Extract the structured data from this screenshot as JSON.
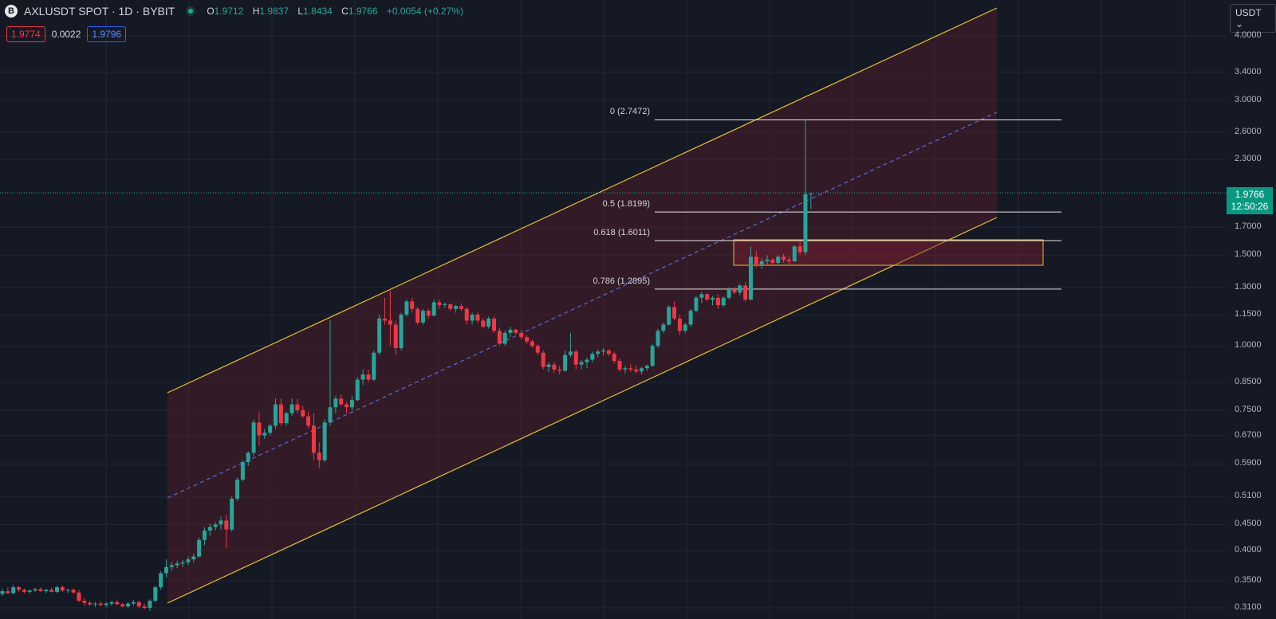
{
  "header": {
    "symbol": "AXLUSDT SPOT · 1D · BYBIT",
    "open_label": "O",
    "open": "1.9712",
    "high_label": "H",
    "high": "1.9837",
    "low_label": "L",
    "low": "1.8434",
    "close_label": "C",
    "close": "1.9766",
    "change": "+0.0054 (+0.27%)"
  },
  "quote": {
    "bid": "1.9774",
    "spread": "0.0022",
    "ask": "1.9796"
  },
  "currency": "USDT",
  "icons": {
    "symbol": "bybit-logo-icon",
    "status": "market-open-status-icon",
    "dropdown": "chevron-down-icon"
  },
  "price_axis": [
    "4.0000",
    "3.4000",
    "3.0000",
    "2.6000",
    "2.3000",
    "1.7000",
    "1.5000",
    "1.3000",
    "1.1500",
    "1.0000",
    "0.8500",
    "0.7500",
    "0.6700",
    "0.5900",
    "0.5100",
    "0.4500",
    "0.4000",
    "0.3500",
    "0.3100"
  ],
  "last_price": {
    "price": "1.9766",
    "countdown": "12:50:26"
  },
  "fib_levels": [
    {
      "label": "0 (2.7472)",
      "price": 2.7472
    },
    {
      "label": "0.5 (1.8199)",
      "price": 1.8199
    },
    {
      "label": "0.618 (1.6011)",
      "price": 1.6011
    },
    {
      "label": "0.786 (1.2895)",
      "price": 1.2895
    }
  ],
  "colors": {
    "background": "#151924",
    "up": "#26a69a",
    "down": "#f23645",
    "channel": "#e6c229",
    "median": "#5b6bd6",
    "channel_fill": "#5b1f2c"
  },
  "chart_data": {
    "type": "candlestick",
    "symbol": "AXLUSDT",
    "interval": "1D",
    "y_scale": "log",
    "ylim": [
      0.3,
      4.3
    ],
    "candles": [
      [
        0.33,
        0.338,
        0.327,
        0.334
      ],
      [
        0.334,
        0.34,
        0.33,
        0.331
      ],
      [
        0.331,
        0.344,
        0.329,
        0.34
      ],
      [
        0.34,
        0.342,
        0.332,
        0.336
      ],
      [
        0.336,
        0.338,
        0.331,
        0.333
      ],
      [
        0.333,
        0.336,
        0.33,
        0.335
      ],
      [
        0.335,
        0.339,
        0.333,
        0.337
      ],
      [
        0.337,
        0.34,
        0.333,
        0.334
      ],
      [
        0.334,
        0.337,
        0.331,
        0.336
      ],
      [
        0.336,
        0.339,
        0.332,
        0.333
      ],
      [
        0.333,
        0.342,
        0.331,
        0.34
      ],
      [
        0.34,
        0.343,
        0.333,
        0.335
      ],
      [
        0.335,
        0.338,
        0.331,
        0.336
      ],
      [
        0.336,
        0.338,
        0.33,
        0.332
      ],
      [
        0.332,
        0.336,
        0.318,
        0.32
      ],
      [
        0.32,
        0.324,
        0.313,
        0.317
      ],
      [
        0.317,
        0.32,
        0.312,
        0.315
      ],
      [
        0.315,
        0.318,
        0.311,
        0.316
      ],
      [
        0.316,
        0.319,
        0.312,
        0.314
      ],
      [
        0.314,
        0.318,
        0.311,
        0.316
      ],
      [
        0.316,
        0.32,
        0.313,
        0.318
      ],
      [
        0.318,
        0.322,
        0.314,
        0.315
      ],
      [
        0.315,
        0.317,
        0.311,
        0.312
      ],
      [
        0.312,
        0.318,
        0.31,
        0.316
      ],
      [
        0.316,
        0.321,
        0.313,
        0.318
      ],
      [
        0.318,
        0.32,
        0.31,
        0.312
      ],
      [
        0.312,
        0.316,
        0.308,
        0.31
      ],
      [
        0.31,
        0.322,
        0.306,
        0.32
      ],
      [
        0.32,
        0.342,
        0.318,
        0.34
      ],
      [
        0.34,
        0.365,
        0.336,
        0.362
      ],
      [
        0.362,
        0.385,
        0.355,
        0.372
      ],
      [
        0.372,
        0.38,
        0.366,
        0.375
      ],
      [
        0.375,
        0.383,
        0.37,
        0.378
      ],
      [
        0.378,
        0.384,
        0.372,
        0.38
      ],
      [
        0.38,
        0.39,
        0.375,
        0.385
      ],
      [
        0.385,
        0.395,
        0.38,
        0.39
      ],
      [
        0.39,
        0.425,
        0.388,
        0.42
      ],
      [
        0.42,
        0.445,
        0.41,
        0.438
      ],
      [
        0.438,
        0.452,
        0.428,
        0.445
      ],
      [
        0.445,
        0.455,
        0.438,
        0.45
      ],
      [
        0.45,
        0.466,
        0.44,
        0.458
      ],
      [
        0.458,
        0.47,
        0.405,
        0.44
      ],
      [
        0.44,
        0.51,
        0.436,
        0.505
      ],
      [
        0.505,
        0.555,
        0.5,
        0.55
      ],
      [
        0.55,
        0.6,
        0.545,
        0.595
      ],
      [
        0.595,
        0.625,
        0.585,
        0.62
      ],
      [
        0.62,
        0.72,
        0.612,
        0.71
      ],
      [
        0.71,
        0.745,
        0.64,
        0.67
      ],
      [
        0.67,
        0.69,
        0.66,
        0.678
      ],
      [
        0.678,
        0.705,
        0.67,
        0.7
      ],
      [
        0.7,
        0.79,
        0.69,
        0.77
      ],
      [
        0.77,
        0.79,
        0.7,
        0.708
      ],
      [
        0.708,
        0.745,
        0.7,
        0.74
      ],
      [
        0.74,
        0.79,
        0.732,
        0.77
      ],
      [
        0.77,
        0.788,
        0.74,
        0.75
      ],
      [
        0.75,
        0.765,
        0.725,
        0.73
      ],
      [
        0.73,
        0.745,
        0.69,
        0.7
      ],
      [
        0.7,
        0.74,
        0.6,
        0.62
      ],
      [
        0.62,
        0.65,
        0.58,
        0.6
      ],
      [
        0.6,
        0.72,
        0.595,
        0.71
      ],
      [
        0.71,
        1.12,
        0.7,
        0.76
      ],
      [
        0.76,
        0.8,
        0.74,
        0.79
      ],
      [
        0.79,
        0.805,
        0.765,
        0.77
      ],
      [
        0.77,
        0.78,
        0.74,
        0.76
      ],
      [
        0.76,
        0.8,
        0.75,
        0.785
      ],
      [
        0.785,
        0.87,
        0.78,
        0.86
      ],
      [
        0.86,
        0.9,
        0.84,
        0.88
      ],
      [
        0.88,
        0.9,
        0.85,
        0.86
      ],
      [
        0.86,
        0.98,
        0.855,
        0.97
      ],
      [
        0.97,
        1.15,
        0.96,
        1.13
      ],
      [
        1.13,
        1.24,
        1.1,
        1.12
      ],
      [
        1.12,
        1.28,
        1.0,
        1.1
      ],
      [
        1.1,
        1.12,
        0.96,
        0.99
      ],
      [
        0.99,
        1.16,
        0.98,
        1.15
      ],
      [
        1.15,
        1.23,
        1.14,
        1.22
      ],
      [
        1.22,
        1.24,
        1.16,
        1.18
      ],
      [
        1.18,
        1.19,
        1.1,
        1.11
      ],
      [
        1.11,
        1.18,
        1.1,
        1.17
      ],
      [
        1.17,
        1.18,
        1.13,
        1.145
      ],
      [
        1.145,
        1.23,
        1.14,
        1.215
      ],
      [
        1.215,
        1.23,
        1.18,
        1.2
      ],
      [
        1.2,
        1.215,
        1.185,
        1.205
      ],
      [
        1.205,
        1.21,
        1.17,
        1.18
      ],
      [
        1.18,
        1.2,
        1.16,
        1.195
      ],
      [
        1.195,
        1.21,
        1.17,
        1.18
      ],
      [
        1.18,
        1.19,
        1.1,
        1.12
      ],
      [
        1.12,
        1.16,
        1.1,
        1.15
      ],
      [
        1.15,
        1.16,
        1.11,
        1.12
      ],
      [
        1.12,
        1.135,
        1.08,
        1.09
      ],
      [
        1.09,
        1.14,
        1.08,
        1.13
      ],
      [
        1.13,
        1.14,
        1.06,
        1.07
      ],
      [
        1.07,
        1.085,
        1.0,
        1.01
      ],
      [
        1.01,
        1.07,
        1.0,
        1.06
      ],
      [
        1.06,
        1.09,
        1.04,
        1.075
      ],
      [
        1.075,
        1.08,
        1.05,
        1.06
      ],
      [
        1.06,
        1.075,
        1.03,
        1.04
      ],
      [
        1.04,
        1.05,
        1.01,
        1.02
      ],
      [
        1.02,
        1.03,
        0.99,
        1.0
      ],
      [
        1.0,
        1.01,
        0.96,
        0.97
      ],
      [
        0.97,
        0.98,
        0.9,
        0.91
      ],
      [
        0.91,
        0.93,
        0.89,
        0.92
      ],
      [
        0.92,
        0.93,
        0.885,
        0.9
      ],
      [
        0.9,
        0.915,
        0.88,
        0.895
      ],
      [
        0.895,
        0.98,
        0.89,
        0.96
      ],
      [
        0.96,
        1.06,
        0.95,
        0.975
      ],
      [
        0.975,
        0.985,
        0.9,
        0.92
      ],
      [
        0.92,
        0.94,
        0.9,
        0.93
      ],
      [
        0.93,
        0.95,
        0.905,
        0.94
      ],
      [
        0.94,
        0.975,
        0.93,
        0.965
      ],
      [
        0.965,
        0.985,
        0.95,
        0.975
      ],
      [
        0.975,
        0.99,
        0.96,
        0.98
      ],
      [
        0.98,
        0.985,
        0.955,
        0.965
      ],
      [
        0.965,
        0.975,
        0.925,
        0.935
      ],
      [
        0.935,
        0.945,
        0.89,
        0.9
      ],
      [
        0.9,
        0.915,
        0.885,
        0.905
      ],
      [
        0.905,
        0.92,
        0.89,
        0.9
      ],
      [
        0.9,
        0.915,
        0.885,
        0.892
      ],
      [
        0.892,
        0.91,
        0.88,
        0.905
      ],
      [
        0.905,
        0.92,
        0.895,
        0.915
      ],
      [
        0.915,
        1.01,
        0.91,
        1.0
      ],
      [
        1.0,
        1.08,
        0.99,
        1.07
      ],
      [
        1.07,
        1.11,
        1.06,
        1.1
      ],
      [
        1.1,
        1.2,
        1.095,
        1.19
      ],
      [
        1.19,
        1.22,
        1.12,
        1.13
      ],
      [
        1.13,
        1.15,
        1.05,
        1.07
      ],
      [
        1.07,
        1.11,
        1.06,
        1.1
      ],
      [
        1.1,
        1.18,
        1.09,
        1.17
      ],
      [
        1.17,
        1.25,
        1.16,
        1.24
      ],
      [
        1.24,
        1.275,
        1.21,
        1.26
      ],
      [
        1.26,
        1.265,
        1.22,
        1.23
      ],
      [
        1.23,
        1.25,
        1.2,
        1.24
      ],
      [
        1.24,
        1.26,
        1.18,
        1.2
      ],
      [
        1.2,
        1.25,
        1.19,
        1.24
      ],
      [
        1.24,
        1.3,
        1.23,
        1.285
      ],
      [
        1.285,
        1.3,
        1.26,
        1.27
      ],
      [
        1.27,
        1.32,
        1.255,
        1.31
      ],
      [
        1.31,
        1.33,
        1.22,
        1.23
      ],
      [
        1.23,
        1.56,
        1.225,
        1.49
      ],
      [
        1.49,
        1.53,
        1.42,
        1.44
      ],
      [
        1.44,
        1.48,
        1.41,
        1.46
      ],
      [
        1.46,
        1.5,
        1.44,
        1.47
      ],
      [
        1.47,
        1.48,
        1.435,
        1.45
      ],
      [
        1.45,
        1.5,
        1.43,
        1.49
      ],
      [
        1.49,
        1.51,
        1.45,
        1.47
      ],
      [
        1.47,
        1.49,
        1.44,
        1.46
      ],
      [
        1.46,
        1.57,
        1.455,
        1.56
      ],
      [
        1.56,
        1.6,
        1.5,
        1.52
      ],
      [
        1.52,
        2.747,
        1.5,
        1.971
      ],
      [
        1.9712,
        1.9837,
        1.8434,
        1.9766
      ]
    ]
  }
}
